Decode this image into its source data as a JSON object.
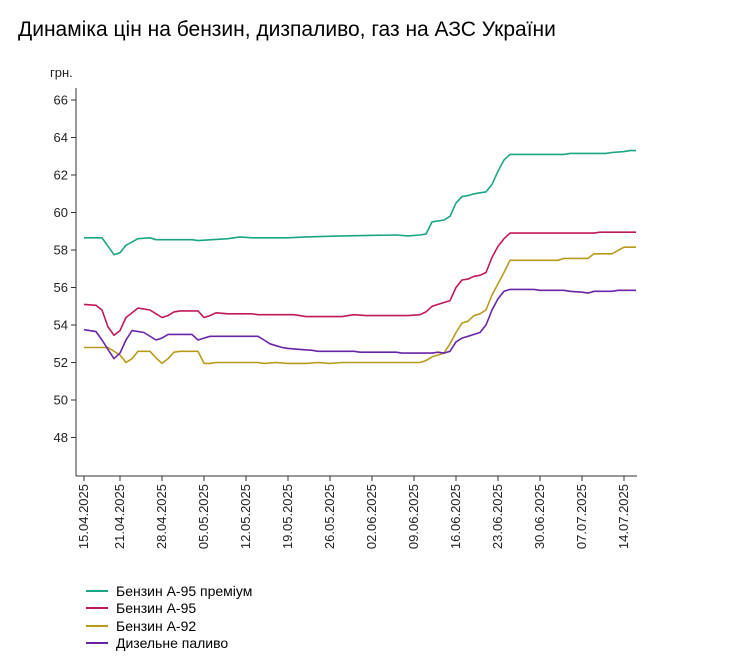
{
  "title": "Динаміка цін на бензин, дизпаливо, газ на АЗС України",
  "chart_data": {
    "type": "line",
    "title": "Динаміка цін на бензин, дизпаливо, газ на АЗС України",
    "ylabel": "грн.",
    "ylim": [
      46,
      66
    ],
    "yticks": [
      48,
      50,
      52,
      54,
      56,
      58,
      60,
      62,
      64,
      66
    ],
    "xlim": [
      "2025-04-15",
      "2025-07-16"
    ],
    "xticks": [
      "15.04.2025",
      "21.04.2025",
      "28.04.2025",
      "05.05.2025",
      "12.05.2025",
      "19.05.2025",
      "26.05.2025",
      "02.06.2025",
      "09.06.2025",
      "16.06.2025",
      "23.06.2025",
      "30.06.2025",
      "07.07.2025",
      "14.07.2025"
    ],
    "legend_position": "bottom-left",
    "grid": false,
    "series": [
      {
        "name": "Бензин А-95 преміум",
        "color": "#1aa586",
        "points": [
          [
            "2025-04-15",
            58.65
          ],
          [
            "2025-04-18",
            58.65
          ],
          [
            "2025-04-19",
            58.2
          ],
          [
            "2025-04-20",
            57.75
          ],
          [
            "2025-04-21",
            57.85
          ],
          [
            "2025-04-22",
            58.25
          ],
          [
            "2025-04-24",
            58.6
          ],
          [
            "2025-04-26",
            58.65
          ],
          [
            "2025-04-27",
            58.55
          ],
          [
            "2025-05-03",
            58.55
          ],
          [
            "2025-05-04",
            58.5
          ],
          [
            "2025-05-09",
            58.6
          ],
          [
            "2025-05-11",
            58.7
          ],
          [
            "2025-05-13",
            58.65
          ],
          [
            "2025-05-19",
            58.65
          ],
          [
            "2025-05-22",
            58.7
          ],
          [
            "2025-05-28",
            58.75
          ],
          [
            "2025-06-06",
            58.8
          ],
          [
            "2025-06-08",
            58.75
          ],
          [
            "2025-06-10",
            58.8
          ],
          [
            "2025-06-11",
            58.85
          ],
          [
            "2025-06-12",
            59.5
          ],
          [
            "2025-06-14",
            59.6
          ],
          [
            "2025-06-15",
            59.8
          ],
          [
            "2025-06-16",
            60.5
          ],
          [
            "2025-06-17",
            60.85
          ],
          [
            "2025-06-18",
            60.9
          ],
          [
            "2025-06-19",
            61.0
          ],
          [
            "2025-06-20",
            61.05
          ],
          [
            "2025-06-21",
            61.1
          ],
          [
            "2025-06-22",
            61.5
          ],
          [
            "2025-06-23",
            62.2
          ],
          [
            "2025-06-24",
            62.8
          ],
          [
            "2025-06-25",
            63.1
          ],
          [
            "2025-07-04",
            63.1
          ],
          [
            "2025-07-05",
            63.15
          ],
          [
            "2025-07-11",
            63.15
          ],
          [
            "2025-07-12",
            63.2
          ],
          [
            "2025-07-14",
            63.25
          ],
          [
            "2025-07-15",
            63.3
          ],
          [
            "2025-07-16",
            63.3
          ]
        ]
      },
      {
        "name": "Бензин А-95",
        "color": "#c0195a",
        "points": [
          [
            "2025-04-15",
            55.1
          ],
          [
            "2025-04-17",
            55.05
          ],
          [
            "2025-04-18",
            54.8
          ],
          [
            "2025-04-19",
            53.9
          ],
          [
            "2025-04-20",
            53.45
          ],
          [
            "2025-04-21",
            53.7
          ],
          [
            "2025-04-22",
            54.4
          ],
          [
            "2025-04-24",
            54.9
          ],
          [
            "2025-04-26",
            54.8
          ],
          [
            "2025-04-27",
            54.6
          ],
          [
            "2025-04-28",
            54.4
          ],
          [
            "2025-04-29",
            54.5
          ],
          [
            "2025-04-30",
            54.7
          ],
          [
            "2025-05-01",
            54.75
          ],
          [
            "2025-05-04",
            54.75
          ],
          [
            "2025-05-05",
            54.4
          ],
          [
            "2025-05-06",
            54.5
          ],
          [
            "2025-05-07",
            54.65
          ],
          [
            "2025-05-09",
            54.6
          ],
          [
            "2025-05-13",
            54.6
          ],
          [
            "2025-05-14",
            54.55
          ],
          [
            "2025-05-20",
            54.55
          ],
          [
            "2025-05-22",
            54.45
          ],
          [
            "2025-05-28",
            54.45
          ],
          [
            "2025-05-30",
            54.55
          ],
          [
            "2025-06-01",
            54.5
          ],
          [
            "2025-06-08",
            54.5
          ],
          [
            "2025-06-10",
            54.55
          ],
          [
            "2025-06-11",
            54.7
          ],
          [
            "2025-06-12",
            55.0
          ],
          [
            "2025-06-13",
            55.1
          ],
          [
            "2025-06-15",
            55.3
          ],
          [
            "2025-06-16",
            56.0
          ],
          [
            "2025-06-17",
            56.4
          ],
          [
            "2025-06-18",
            56.45
          ],
          [
            "2025-06-19",
            56.6
          ],
          [
            "2025-06-20",
            56.65
          ],
          [
            "2025-06-21",
            56.8
          ],
          [
            "2025-06-22",
            57.6
          ],
          [
            "2025-06-23",
            58.2
          ],
          [
            "2025-06-24",
            58.6
          ],
          [
            "2025-06-25",
            58.9
          ],
          [
            "2025-07-09",
            58.9
          ],
          [
            "2025-07-10",
            58.95
          ],
          [
            "2025-07-16",
            58.95
          ]
        ]
      },
      {
        "name": "Бензин А-92",
        "color": "#b89b1b",
        "points": [
          [
            "2025-04-15",
            52.8
          ],
          [
            "2025-04-19",
            52.8
          ],
          [
            "2025-04-21",
            52.4
          ],
          [
            "2025-04-22",
            52.0
          ],
          [
            "2025-04-23",
            52.2
          ],
          [
            "2025-04-24",
            52.6
          ],
          [
            "2025-04-26",
            52.6
          ],
          [
            "2025-04-27",
            52.25
          ],
          [
            "2025-04-28",
            51.95
          ],
          [
            "2025-04-29",
            52.2
          ],
          [
            "2025-04-30",
            52.55
          ],
          [
            "2025-05-01",
            52.6
          ],
          [
            "2025-05-04",
            52.6
          ],
          [
            "2025-05-05",
            51.95
          ],
          [
            "2025-05-06",
            51.95
          ],
          [
            "2025-05-07",
            52.0
          ],
          [
            "2025-05-14",
            52.0
          ],
          [
            "2025-05-15",
            51.95
          ],
          [
            "2025-05-17",
            52.0
          ],
          [
            "2025-05-19",
            51.95
          ],
          [
            "2025-05-22",
            51.95
          ],
          [
            "2025-05-24",
            52.0
          ],
          [
            "2025-05-26",
            51.95
          ],
          [
            "2025-05-28",
            52.0
          ],
          [
            "2025-06-10",
            52.0
          ],
          [
            "2025-06-11",
            52.1
          ],
          [
            "2025-06-12",
            52.3
          ],
          [
            "2025-06-14",
            52.5
          ],
          [
            "2025-06-15",
            53.0
          ],
          [
            "2025-06-16",
            53.6
          ],
          [
            "2025-06-17",
            54.1
          ],
          [
            "2025-06-18",
            54.2
          ],
          [
            "2025-06-19",
            54.5
          ],
          [
            "2025-06-20",
            54.6
          ],
          [
            "2025-06-21",
            54.8
          ],
          [
            "2025-06-22",
            55.6
          ],
          [
            "2025-06-23",
            56.2
          ],
          [
            "2025-06-24",
            56.8
          ],
          [
            "2025-06-25",
            57.45
          ],
          [
            "2025-07-03",
            57.45
          ],
          [
            "2025-07-04",
            57.55
          ],
          [
            "2025-07-08",
            57.55
          ],
          [
            "2025-07-09",
            57.8
          ],
          [
            "2025-07-12",
            57.8
          ],
          [
            "2025-07-14",
            58.15
          ],
          [
            "2025-07-16",
            58.15
          ]
        ]
      },
      {
        "name": "Дизельне паливо",
        "color": "#6a24a8",
        "points": [
          [
            "2025-04-15",
            53.75
          ],
          [
            "2025-04-17",
            53.65
          ],
          [
            "2025-04-18",
            53.2
          ],
          [
            "2025-04-19",
            52.7
          ],
          [
            "2025-04-20",
            52.2
          ],
          [
            "2025-04-21",
            52.5
          ],
          [
            "2025-04-22",
            53.2
          ],
          [
            "2025-04-23",
            53.7
          ],
          [
            "2025-04-25",
            53.6
          ],
          [
            "2025-04-27",
            53.2
          ],
          [
            "2025-04-28",
            53.3
          ],
          [
            "2025-04-29",
            53.5
          ],
          [
            "2025-05-03",
            53.5
          ],
          [
            "2025-05-04",
            53.2
          ],
          [
            "2025-05-05",
            53.3
          ],
          [
            "2025-05-06",
            53.4
          ],
          [
            "2025-05-14",
            53.4
          ],
          [
            "2025-05-15",
            53.2
          ],
          [
            "2025-05-16",
            53.0
          ],
          [
            "2025-05-18",
            52.8
          ],
          [
            "2025-05-19",
            52.75
          ],
          [
            "2025-05-21",
            52.7
          ],
          [
            "2025-05-23",
            52.65
          ],
          [
            "2025-05-24",
            52.6
          ],
          [
            "2025-05-30",
            52.6
          ],
          [
            "2025-05-31",
            52.55
          ],
          [
            "2025-06-06",
            52.55
          ],
          [
            "2025-06-07",
            52.5
          ],
          [
            "2025-06-12",
            52.5
          ],
          [
            "2025-06-13",
            52.55
          ],
          [
            "2025-06-14",
            52.5
          ],
          [
            "2025-06-15",
            52.6
          ],
          [
            "2025-06-16",
            53.1
          ],
          [
            "2025-06-17",
            53.3
          ],
          [
            "2025-06-18",
            53.4
          ],
          [
            "2025-06-19",
            53.5
          ],
          [
            "2025-06-20",
            53.6
          ],
          [
            "2025-06-21",
            54.0
          ],
          [
            "2025-06-22",
            54.8
          ],
          [
            "2025-06-23",
            55.4
          ],
          [
            "2025-06-24",
            55.8
          ],
          [
            "2025-06-25",
            55.9
          ],
          [
            "2025-06-29",
            55.9
          ],
          [
            "2025-06-30",
            55.85
          ],
          [
            "2025-07-04",
            55.85
          ],
          [
            "2025-07-05",
            55.8
          ],
          [
            "2025-07-07",
            55.75
          ],
          [
            "2025-07-08",
            55.7
          ],
          [
            "2025-07-09",
            55.8
          ],
          [
            "2025-07-12",
            55.8
          ],
          [
            "2025-07-13",
            55.85
          ],
          [
            "2025-07-16",
            55.85
          ]
        ]
      }
    ]
  }
}
